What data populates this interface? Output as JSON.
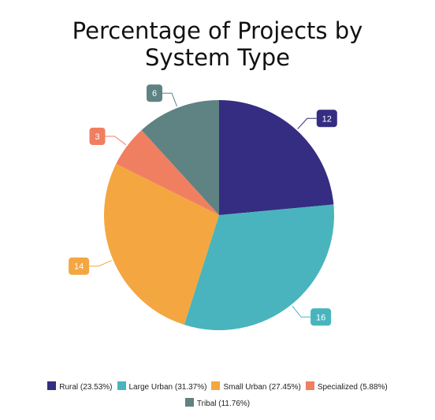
{
  "chart_data": {
    "type": "pie",
    "title": "Percentage of Projects by System Type",
    "title_lines": [
      "Percentage of Projects by",
      "System Type"
    ],
    "slices": [
      {
        "label": "Rural",
        "value": 12,
        "legend": "Rural (23.53%)",
        "color": "#352d82"
      },
      {
        "label": "Large Urban",
        "value": 16,
        "legend": "Large Urban (31.37%)",
        "color": "#49b4bd"
      },
      {
        "label": "Small Urban",
        "value": 14,
        "legend": "Small Urban (27.45%)",
        "color": "#f4a640"
      },
      {
        "label": "Specialized",
        "value": 3,
        "legend": "Specialized (5.88%)",
        "color": "#f07f61"
      },
      {
        "label": "Tribal",
        "value": 6,
        "legend": "Tribal (11.76%)",
        "color": "#5f8283"
      }
    ],
    "data_labels": [
      "12",
      "16",
      "14",
      "3",
      "6"
    ],
    "legend_position": "bottom"
  }
}
